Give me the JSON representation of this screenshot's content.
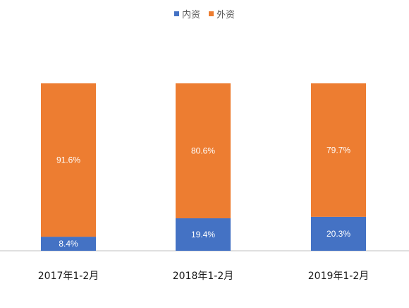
{
  "chart_data": {
    "type": "bar",
    "stacked": true,
    "percent": true,
    "categories": [
      "2017年1-2月",
      "2018年1-2月",
      "2019年1-2月"
    ],
    "series": [
      {
        "name": "内资",
        "values": [
          8.4,
          19.4,
          20.3
        ],
        "labels": [
          "8.4%",
          "19.4%",
          "20.3%"
        ],
        "color": "#4472C4"
      },
      {
        "name": "外资",
        "values": [
          91.6,
          80.6,
          79.7
        ],
        "labels": [
          "91.6%",
          "80.6%",
          "79.7%"
        ],
        "color": "#ED7D31"
      }
    ],
    "ylim": [
      0,
      100
    ],
    "grid": false,
    "legend_position": "top-center",
    "label_color": "#ffffff",
    "axis_color": "#bfbfbf",
    "tick_label_color": "#1a1a1a"
  }
}
